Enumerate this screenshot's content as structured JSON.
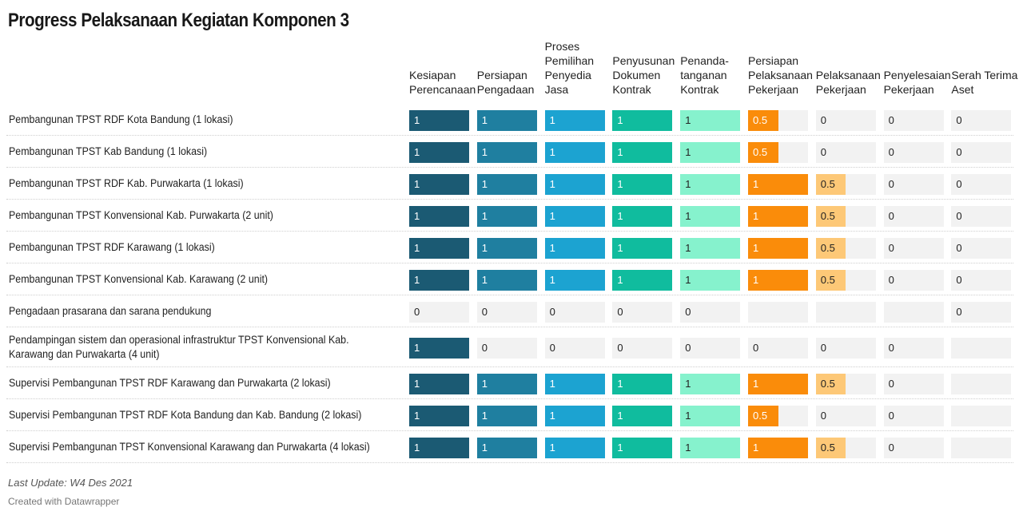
{
  "title": "Progress Pelaksanaan Kegiatan Komponen 3",
  "footer": {
    "last_update": "Last Update: W4 Des 2021",
    "credit": "Created with Datawrapper"
  },
  "chart_data": {
    "type": "table",
    "xlim": [
      0,
      1
    ],
    "columns": [
      {
        "label": "Kesiapan\nPerencanaan",
        "color": "#1b5a73"
      },
      {
        "label": "Persiapan\nPengadaan",
        "color": "#1f7fa0"
      },
      {
        "label": "Proses\nPemilihan\nPenyedia\nJasa",
        "color": "#1ca3d1"
      },
      {
        "label": "Penyusunan\nDokumen\nKontrak",
        "color": "#10bc9e"
      },
      {
        "label": "Penanda-\ntanganan\nKontrak",
        "color": "#86f2cd"
      },
      {
        "label": "Persiapan\nPelaksanaan\nPekerjaan",
        "color": "#fa8c0a"
      },
      {
        "label": "Pelaksanaan\nPekerjaan",
        "color": "#fdc877"
      },
      {
        "label": "Penyelesaian\nPekerjaan",
        "color": "#f2f2f2"
      },
      {
        "label": "Serah Terima\nAset",
        "color": "#f2f2f2"
      }
    ],
    "rows": [
      {
        "label": "Pembangunan TPST RDF Kota Bandung (1 lokasi)",
        "values": [
          1,
          1,
          1,
          1,
          1,
          0.5,
          0,
          0,
          0
        ]
      },
      {
        "label": "Pembangunan TPST Kab Bandung (1 lokasi)",
        "values": [
          1,
          1,
          1,
          1,
          1,
          0.5,
          0,
          0,
          0
        ]
      },
      {
        "label": "Pembangunan TPST RDF Kab. Purwakarta (1 lokasi)",
        "values": [
          1,
          1,
          1,
          1,
          1,
          1,
          0.5,
          0,
          0
        ]
      },
      {
        "label": "Pembangunan TPST Konvensional Kab. Purwakarta (2 unit)",
        "values": [
          1,
          1,
          1,
          1,
          1,
          1,
          0.5,
          0,
          0
        ]
      },
      {
        "label": "Pembangunan TPST RDF Karawang (1 lokasi)",
        "values": [
          1,
          1,
          1,
          1,
          1,
          1,
          0.5,
          0,
          0
        ]
      },
      {
        "label": "Pembangunan TPST Konvensional Kab. Karawang (2 unit)",
        "values": [
          1,
          1,
          1,
          1,
          1,
          1,
          0.5,
          0,
          0
        ]
      },
      {
        "label": "Pengadaan prasarana dan sarana pendukung",
        "values": [
          0,
          0,
          0,
          0,
          0,
          null,
          null,
          null,
          0
        ]
      },
      {
        "label": "Pendampingan sistem dan operasional infrastruktur TPST Konvensional Kab. Karawang dan Purwakarta (4 unit)",
        "values": [
          1,
          0,
          0,
          0,
          0,
          0,
          0,
          0,
          null
        ]
      },
      {
        "label": "Supervisi Pembangunan TPST RDF Karawang dan Purwakarta (2 lokasi)",
        "values": [
          1,
          1,
          1,
          1,
          1,
          1,
          0.5,
          0,
          null
        ]
      },
      {
        "label": "Supervisi Pembangunan TPST RDF Kota Bandung dan Kab. Bandung (2 lokasi)",
        "values": [
          1,
          1,
          1,
          1,
          1,
          0.5,
          0,
          0,
          null
        ]
      },
      {
        "label": "Supervisi Pembangunan TPST Konvensional Karawang dan Purwakarta (4 lokasi)",
        "values": [
          1,
          1,
          1,
          1,
          1,
          1,
          0.5,
          0,
          null
        ]
      }
    ]
  }
}
